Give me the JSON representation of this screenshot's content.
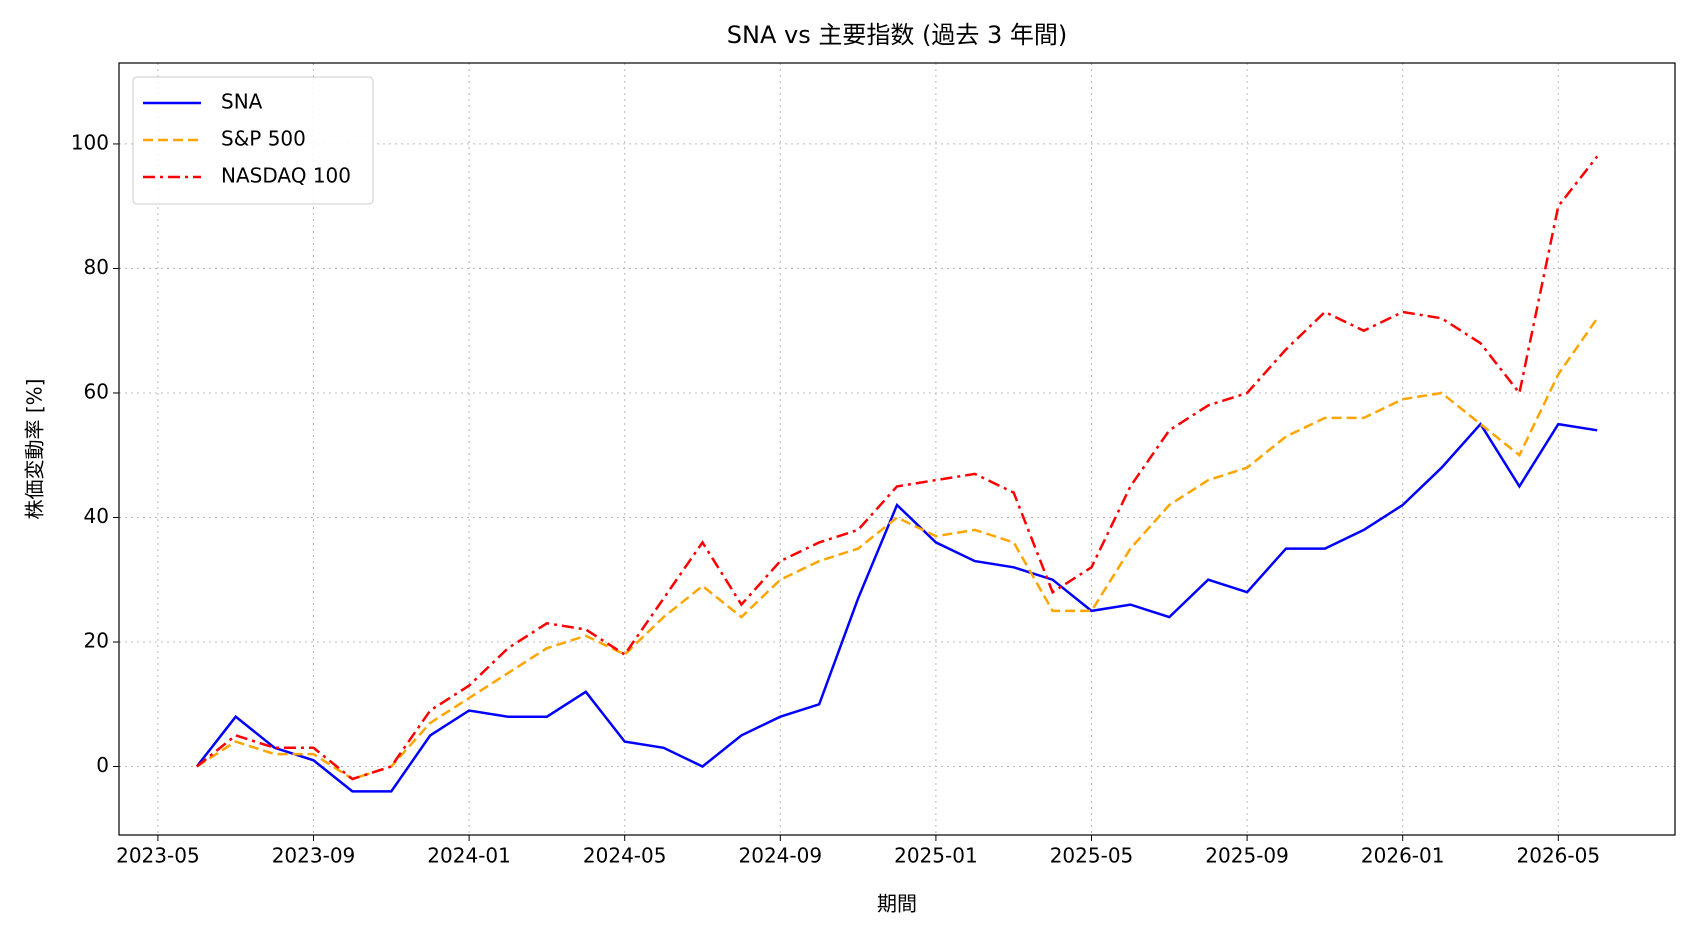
{
  "chart_data": {
    "type": "line",
    "title": "SNA vs 主要指数 (過去 3 年間)",
    "x_label": "期間",
    "y_label": "株価変動率 [%]",
    "x": [
      "2023-06",
      "2023-07",
      "2023-08",
      "2023-09",
      "2023-10",
      "2023-11",
      "2023-12",
      "2024-01",
      "2024-02",
      "2024-03",
      "2024-04",
      "2024-05",
      "2024-06",
      "2024-07",
      "2024-08",
      "2024-09",
      "2024-10",
      "2024-11",
      "2024-12",
      "2025-01",
      "2025-02",
      "2025-03",
      "2025-04",
      "2025-05",
      "2025-06",
      "2025-07",
      "2025-08",
      "2025-09",
      "2025-10",
      "2025-11",
      "2025-12",
      "2026-01",
      "2026-02",
      "2026-03",
      "2026-04",
      "2026-05",
      "2026-06"
    ],
    "series": [
      {
        "name": "SNA",
        "color": "#0000ff",
        "linestyle": "solid",
        "values": [
          0,
          8,
          3,
          1,
          -4,
          -4,
          5,
          9,
          8,
          8,
          12,
          4,
          3,
          0,
          5,
          8,
          10,
          27,
          42,
          36,
          33,
          32,
          30,
          25,
          26,
          24,
          30,
          28,
          35,
          35,
          38,
          42,
          48,
          55,
          45,
          55,
          54
        ]
      },
      {
        "name": "S&P 500",
        "color": "#ffa500",
        "linestyle": "dashed",
        "values": [
          0,
          4,
          2,
          2,
          -2,
          0,
          7,
          11,
          15,
          19,
          21,
          18,
          24,
          29,
          24,
          30,
          33,
          35,
          40,
          37,
          38,
          36,
          25,
          25,
          35,
          42,
          46,
          48,
          53,
          56,
          56,
          59,
          60,
          55,
          50,
          63,
          72
        ]
      },
      {
        "name": "NASDAQ 100",
        "color": "#ff0000",
        "linestyle": "dashdot",
        "values": [
          0,
          5,
          3,
          3,
          -2,
          0,
          9,
          13,
          19,
          23,
          22,
          18,
          27,
          36,
          26,
          33,
          36,
          38,
          45,
          46,
          47,
          44,
          28,
          32,
          45,
          54,
          58,
          60,
          67,
          73,
          70,
          73,
          72,
          68,
          60,
          90,
          98
        ]
      }
    ],
    "xlim": [
      "2023-04",
      "2026-08"
    ],
    "xticks": [
      "2023-05",
      "2023-09",
      "2024-01",
      "2024-05",
      "2024-09",
      "2025-01",
      "2025-05",
      "2025-09",
      "2026-01",
      "2026-05"
    ],
    "ylim": [
      -11,
      113
    ],
    "yticks": [
      0,
      20,
      40,
      60,
      80,
      100
    ],
    "grid": true,
    "legend": "upper left"
  }
}
